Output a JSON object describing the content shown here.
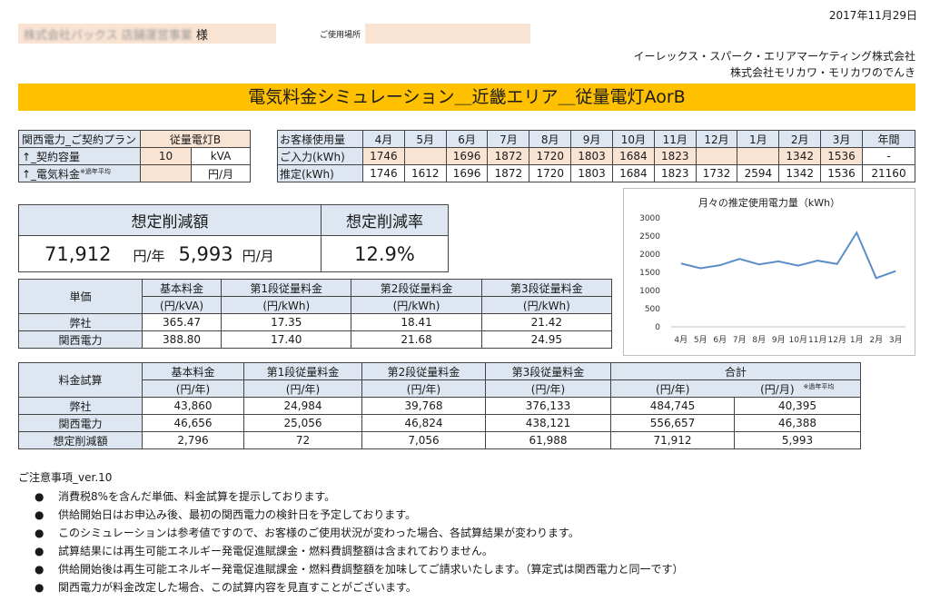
{
  "header": {
    "date": "2017年11月29日",
    "customer_name": "株式会社バックス 店舗運営事業",
    "customer_suffix": "様",
    "location_label": "ご使用場所",
    "location_value": "",
    "company_line1": "イーレックス・スパーク・エリアマーケティング株式会社",
    "company_line2": "株式会社モリカワ・モリカワのでんき"
  },
  "title": "電気料金シミュレーション＿近畿エリア＿従量電灯AorB",
  "plan": {
    "label": "関西電力_ご契約プラン",
    "value": "従量電灯B",
    "capacity_label": "↑_契約容量",
    "capacity_value": "10",
    "capacity_unit": "kVA",
    "fee_label": "↑_電気料金",
    "fee_note": "※過年平均",
    "fee_value": "",
    "fee_unit": "円/月"
  },
  "usage": {
    "header_label": "お客様使用量",
    "months": [
      "4月",
      "5月",
      "6月",
      "7月",
      "8月",
      "9月",
      "10月",
      "11月",
      "12月",
      "1月",
      "2月",
      "3月"
    ],
    "annual_label": "年間",
    "input_label": "ご入力(kWh)",
    "input_values": [
      "1746",
      "",
      "1696",
      "1872",
      "1720",
      "1803",
      "1684",
      "1823",
      "",
      "",
      "1342",
      "1536"
    ],
    "input_annual": "-",
    "estimate_label": "推定(kWh)",
    "estimate_values": [
      "1746",
      "1612",
      "1696",
      "1872",
      "1720",
      "1803",
      "1684",
      "1823",
      "1732",
      "2594",
      "1342",
      "1536"
    ],
    "estimate_annual": "21160"
  },
  "savings": {
    "amount_label": "想定削減額",
    "rate_label": "想定削減率",
    "yearly_value": "71,912",
    "yearly_unit": "円/年",
    "monthly_value": "5,993",
    "monthly_unit": "円/月",
    "rate_value": "12.9%"
  },
  "unit_price": {
    "label": "単価",
    "columns": [
      {
        "name": "基本料金",
        "unit": "(円/kVA)"
      },
      {
        "name": "第1段従量料金",
        "unit": "(円/kWh)"
      },
      {
        "name": "第2段従量料金",
        "unit": "(円/kWh)"
      },
      {
        "name": "第3段従量料金",
        "unit": "(円/kWh)"
      }
    ],
    "rows": [
      {
        "label": "弊社",
        "values": [
          "365.47",
          "17.35",
          "18.41",
          "21.42"
        ]
      },
      {
        "label": "関西電力",
        "values": [
          "388.80",
          "17.40",
          "21.68",
          "24.95"
        ]
      }
    ]
  },
  "fee_trial": {
    "label": "料金試算",
    "columns": [
      {
        "name": "基本料金",
        "unit": "(円/年)"
      },
      {
        "name": "第1段従量料金",
        "unit": "(円/年)"
      },
      {
        "name": "第2段従量料金",
        "unit": "(円/年)"
      },
      {
        "name": "第3段従量料金",
        "unit": "(円/年)"
      }
    ],
    "total_label": "合計",
    "total_unit_year": "(円/年)",
    "total_unit_month": "(円/月)",
    "total_note": "※過年平均",
    "rows": [
      {
        "label": "弊社",
        "values": [
          "43,860",
          "24,984",
          "39,768",
          "376,133",
          "484,745",
          "40,395"
        ]
      },
      {
        "label": "関西電力",
        "values": [
          "46,656",
          "25,056",
          "46,824",
          "438,121",
          "556,657",
          "46,388"
        ]
      },
      {
        "label": "想定削減額",
        "values": [
          "2,796",
          "72",
          "7,056",
          "61,988",
          "71,912",
          "5,993"
        ]
      }
    ]
  },
  "notes": {
    "title": "ご注意事項_ver.10",
    "bullet": "●",
    "items": [
      "消費税8%を含んだ単価、料金試算を提示しております。",
      "供給開始日はお申込み後、最初の関西電力の検針日を予定しております。",
      "このシミュレーションは参考値ですので、お客様のご使用状況が変わった場合、各試算結果が変わります。",
      "試算結果には再生可能エネルギー発電促進賦課金・燃料費調整額は含まれておりません。",
      "供給開始後は再生可能エネルギー発電促進賦課金・燃料費調整額を加味してご請求いたします。（算定式は関西電力と同一です）",
      "関西電力が料金改定した場合、この試算内容を見直すことがございます。"
    ]
  },
  "chart_data": {
    "type": "line",
    "title": "月々の推定使用電力量（kWh）",
    "categories": [
      "4月",
      "5月",
      "6月",
      "7月",
      "8月",
      "9月",
      "10月",
      "11月",
      "12月",
      "1月",
      "2月",
      "3月"
    ],
    "values": [
      1746,
      1612,
      1696,
      1872,
      1720,
      1803,
      1684,
      1823,
      1732,
      2594,
      1342,
      1536
    ],
    "y_ticks": [
      "0",
      "500",
      "1000",
      "1500",
      "2000",
      "2500",
      "3000"
    ],
    "ylim": [
      0,
      3000
    ],
    "grid": false,
    "legend": "none",
    "line_color": "#5b8ec9"
  }
}
